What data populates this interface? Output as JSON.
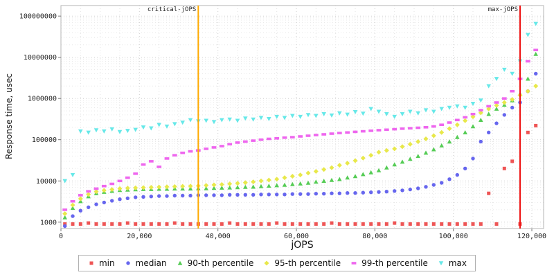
{
  "chart_data": {
    "type": "scatter",
    "title": "",
    "xlabel": "jOPS",
    "ylabel": "Response time, usec",
    "x_scale": "linear",
    "y_scale": "log",
    "grid": true,
    "legend_position": "bottom",
    "xlim": [
      0,
      123000
    ],
    "ylim": [
      700,
      180000000
    ],
    "x_ticks": [
      0,
      20000,
      40000,
      60000,
      80000,
      100000,
      120000
    ],
    "x_tick_labels": [
      "0",
      "20,000",
      "40,000",
      "60,000",
      "80,000",
      "100,000",
      "120,000"
    ],
    "x_minor_step": 5000,
    "y_ticks": [
      1000,
      10000,
      100000,
      1000000,
      10000000,
      100000000
    ],
    "y_tick_labels": [
      "1000",
      "10000",
      "100000",
      "1000000",
      "10000000",
      "100000000"
    ],
    "vlines": [
      {
        "x": 35000,
        "color": "#ffaa00",
        "label": "critical-jOPS"
      },
      {
        "x": 117000,
        "color": "#ee1111",
        "label": "max-jOPS"
      }
    ],
    "x": [
      1000,
      3000,
      5000,
      7000,
      9000,
      11000,
      13000,
      15000,
      17000,
      19000,
      21000,
      23000,
      25000,
      27000,
      29000,
      31000,
      33000,
      35000,
      37000,
      39000,
      41000,
      43000,
      45000,
      47000,
      49000,
      51000,
      53000,
      55000,
      57000,
      59000,
      61000,
      63000,
      65000,
      67000,
      69000,
      71000,
      73000,
      75000,
      77000,
      79000,
      81000,
      83000,
      85000,
      87000,
      89000,
      91000,
      93000,
      95000,
      97000,
      99000,
      101000,
      103000,
      105000,
      107000,
      109000,
      111000,
      113000,
      115000,
      117000,
      119000,
      121000
    ],
    "series": [
      {
        "name": "min",
        "marker": "square",
        "color": "#ee5555",
        "values": [
          900,
          900,
          900,
          950,
          900,
          900,
          900,
          900,
          950,
          900,
          900,
          900,
          900,
          900,
          950,
          900,
          900,
          900,
          900,
          900,
          900,
          950,
          900,
          900,
          900,
          900,
          900,
          950,
          900,
          900,
          900,
          900,
          900,
          900,
          950,
          900,
          900,
          900,
          900,
          900,
          900,
          900,
          950,
          900,
          900,
          900,
          900,
          900,
          900,
          900,
          900,
          900,
          900,
          900,
          5000,
          900,
          20000,
          30000,
          900,
          150000,
          220000
        ]
      },
      {
        "name": "median",
        "marker": "circle",
        "color": "#6666ee",
        "values": [
          800,
          1400,
          1900,
          2300,
          2700,
          3000,
          3300,
          3600,
          3800,
          4000,
          4100,
          4200,
          4300,
          4300,
          4400,
          4400,
          4400,
          4500,
          4500,
          4500,
          4500,
          4600,
          4600,
          4600,
          4600,
          4700,
          4700,
          4700,
          4700,
          4800,
          4800,
          4800,
          4900,
          4900,
          5000,
          5000,
          5100,
          5100,
          5200,
          5300,
          5400,
          5500,
          5700,
          5900,
          6200,
          6600,
          7200,
          8000,
          9000,
          11000,
          14000,
          20000,
          35000,
          90000,
          150000,
          250000,
          400000,
          600000,
          800000,
          1500000,
          4000000
        ]
      },
      {
        "name": "90-th percentile",
        "marker": "triangle-up",
        "color": "#55cc55",
        "values": [
          1300,
          2200,
          3200,
          4200,
          5000,
          5400,
          5700,
          6000,
          6100,
          6200,
          6300,
          6300,
          6400,
          6400,
          6500,
          6500,
          6500,
          6600,
          6600,
          6700,
          6800,
          6900,
          7000,
          7100,
          7200,
          7400,
          7600,
          7800,
          8000,
          8300,
          8600,
          9000,
          9500,
          10000,
          10500,
          11000,
          12000,
          13000,
          14500,
          16000,
          18000,
          21000,
          25000,
          29000,
          34000,
          40000,
          48000,
          58000,
          72000,
          90000,
          115000,
          150000,
          210000,
          300000,
          420000,
          560000,
          700000,
          900000,
          1300000,
          3000000,
          12000000
        ]
      },
      {
        "name": "95-th percentile",
        "marker": "diamond",
        "color": "#e8e84a",
        "values": [
          1600,
          2600,
          3700,
          4700,
          5500,
          5900,
          6200,
          6500,
          6700,
          6800,
          6900,
          7000,
          7100,
          7200,
          7300,
          7400,
          7500,
          7600,
          7800,
          8000,
          8200,
          8500,
          8800,
          9100,
          9500,
          10000,
          10500,
          11000,
          12000,
          13000,
          14000,
          15500,
          17000,
          19000,
          21000,
          24000,
          27000,
          31000,
          36000,
          42000,
          50000,
          55000,
          60000,
          68000,
          78000,
          90000,
          105000,
          125000,
          150000,
          185000,
          230000,
          290000,
          360000,
          450000,
          560000,
          680000,
          800000,
          950000,
          1200000,
          1500000,
          2000000
        ]
      },
      {
        "name": "99-th percentile",
        "marker": "rect",
        "color": "#ee66ee",
        "values": [
          2000,
          3200,
          4500,
          5600,
          6500,
          7500,
          8500,
          10000,
          12000,
          15000,
          25000,
          30000,
          22000,
          35000,
          42000,
          48000,
          52000,
          55000,
          60000,
          65000,
          70000,
          78000,
          85000,
          90000,
          95000,
          100000,
          105000,
          108000,
          112000,
          115000,
          120000,
          125000,
          130000,
          135000,
          140000,
          145000,
          150000,
          155000,
          160000,
          165000,
          170000,
          175000,
          180000,
          185000,
          190000,
          195000,
          200000,
          210000,
          230000,
          260000,
          300000,
          350000,
          420000,
          520000,
          650000,
          800000,
          1000000,
          1500000,
          3000000,
          8000000,
          15000000
        ]
      },
      {
        "name": "max",
        "marker": "triangle-down",
        "color": "#66e8e8",
        "values": [
          10000,
          14000,
          160000,
          150000,
          170000,
          160000,
          180000,
          155000,
          165000,
          175000,
          200000,
          190000,
          230000,
          210000,
          240000,
          260000,
          300000,
          280000,
          290000,
          270000,
          300000,
          310000,
          290000,
          330000,
          310000,
          340000,
          320000,
          360000,
          340000,
          380000,
          360000,
          400000,
          380000,
          420000,
          390000,
          440000,
          410000,
          470000,
          430000,
          560000,
          480000,
          420000,
          360000,
          420000,
          480000,
          440000,
          520000,
          480000,
          560000,
          600000,
          650000,
          600000,
          750000,
          900000,
          2000000,
          3000000,
          5000000,
          4000000,
          8000000,
          35000000,
          65000000
        ]
      }
    ]
  }
}
